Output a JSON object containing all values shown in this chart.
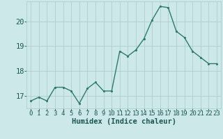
{
  "x": [
    0,
    1,
    2,
    3,
    4,
    5,
    6,
    7,
    8,
    9,
    10,
    11,
    12,
    13,
    14,
    15,
    16,
    17,
    18,
    19,
    20,
    21,
    22,
    23
  ],
  "y": [
    16.8,
    16.95,
    16.8,
    17.35,
    17.35,
    17.2,
    16.7,
    17.3,
    17.55,
    17.2,
    17.2,
    18.8,
    18.6,
    18.85,
    19.3,
    20.05,
    20.6,
    20.55,
    19.6,
    19.35,
    18.8,
    18.55,
    18.3,
    18.3
  ],
  "line_color": "#2d7a6e",
  "marker_color": "#2d7a6e",
  "bg_color": "#cce8e8",
  "grid_color": "#b0cccc",
  "tick_color": "#1a5555",
  "xlabel": "Humidex (Indice chaleur)",
  "ylim": [
    16.5,
    20.8
  ],
  "yticks": [
    17,
    18,
    19,
    20
  ],
  "xticks": [
    0,
    1,
    2,
    3,
    4,
    5,
    6,
    7,
    8,
    9,
    10,
    11,
    12,
    13,
    14,
    15,
    16,
    17,
    18,
    19,
    20,
    21,
    22,
    23
  ],
  "line_width": 1.0,
  "marker_size": 2.5,
  "font_size_xlabel": 7.5,
  "font_size_ticks": 6.5
}
